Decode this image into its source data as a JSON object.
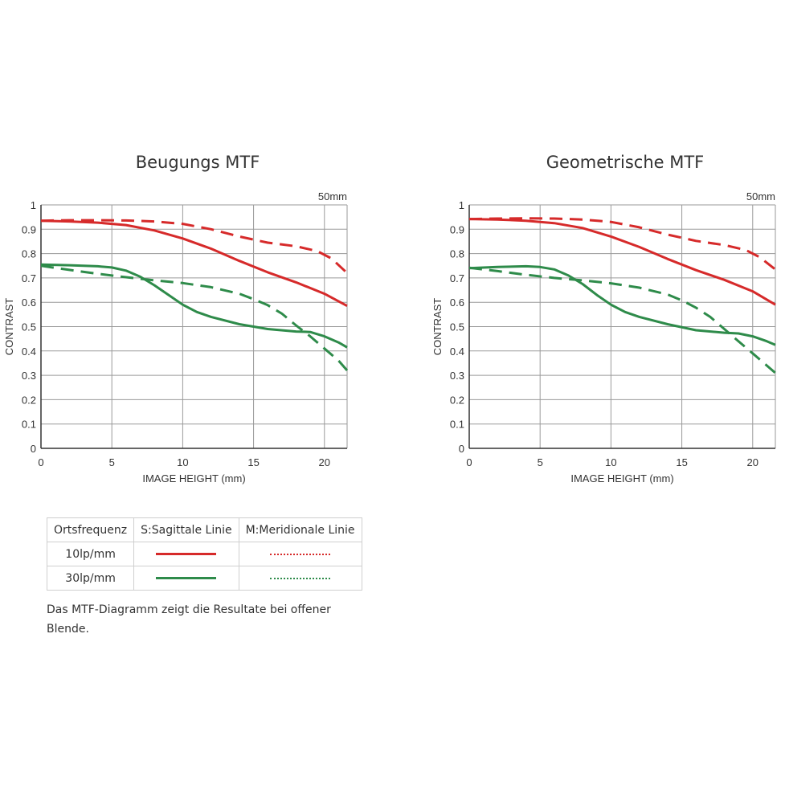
{
  "chart_data": [
    {
      "type": "line",
      "title": "Beugungs MTF",
      "focal_label": "50mm",
      "xlabel": "IMAGE HEIGHT (mm)",
      "ylabel": "CONTRAST",
      "xlim": [
        0,
        21.6
      ],
      "ylim": [
        0,
        1
      ],
      "xticks": [
        0,
        5,
        10,
        15,
        20
      ],
      "yticks": [
        0,
        0.1,
        0.2,
        0.3,
        0.4,
        0.5,
        0.6,
        0.7,
        0.8,
        0.9,
        1
      ],
      "ytick_labels": [
        "0",
        "0.1",
        "0.2",
        "0.3",
        "0.4",
        "0.5",
        "0.6",
        "0.7",
        "0.8",
        "0.9",
        "1"
      ],
      "series": [
        {
          "name": "10lp/mm S",
          "color": "#d62a2a",
          "style": "solid",
          "x": [
            0,
            2,
            4,
            6,
            8,
            10,
            12,
            14,
            16,
            18,
            20,
            21.6
          ],
          "y": [
            0.935,
            0.932,
            0.927,
            0.917,
            0.895,
            0.862,
            0.82,
            0.77,
            0.723,
            0.682,
            0.635,
            0.585
          ]
        },
        {
          "name": "10lp/mm M",
          "color": "#d62a2a",
          "style": "dashed",
          "x": [
            0,
            2,
            4,
            6,
            8,
            10,
            12,
            14,
            16,
            18,
            19.5,
            20.5,
            21.6
          ],
          "y": [
            0.935,
            0.937,
            0.937,
            0.936,
            0.932,
            0.922,
            0.9,
            0.87,
            0.845,
            0.83,
            0.81,
            0.78,
            0.72
          ]
        },
        {
          "name": "30lp/mm S",
          "color": "#2e8b4a",
          "style": "solid",
          "x": [
            0,
            2,
            4,
            5,
            6,
            7,
            8,
            9,
            10,
            11,
            12,
            14,
            16,
            18,
            19,
            20,
            21,
            21.6
          ],
          "y": [
            0.755,
            0.752,
            0.748,
            0.743,
            0.73,
            0.705,
            0.67,
            0.63,
            0.59,
            0.56,
            0.54,
            0.51,
            0.49,
            0.48,
            0.478,
            0.46,
            0.435,
            0.415
          ]
        },
        {
          "name": "30lp/mm M",
          "color": "#2e8b4a",
          "style": "dashed",
          "x": [
            0,
            2,
            4,
            6,
            8,
            10,
            12,
            14,
            15,
            16,
            17,
            18,
            19,
            20,
            21,
            21.6
          ],
          "y": [
            0.75,
            0.733,
            0.717,
            0.703,
            0.69,
            0.679,
            0.662,
            0.635,
            0.613,
            0.588,
            0.553,
            0.505,
            0.46,
            0.41,
            0.36,
            0.32
          ]
        }
      ]
    },
    {
      "type": "line",
      "title": "Geometrische MTF",
      "focal_label": "50mm",
      "xlabel": "IMAGE HEIGHT (mm)",
      "ylabel": "CONTRAST",
      "xlim": [
        0,
        21.6
      ],
      "ylim": [
        0,
        1
      ],
      "xticks": [
        0,
        5,
        10,
        15,
        20
      ],
      "yticks": [
        0,
        0.1,
        0.2,
        0.3,
        0.4,
        0.5,
        0.6,
        0.7,
        0.8,
        0.9,
        1
      ],
      "ytick_labels": [
        "0",
        "0.1",
        "0.2",
        "0.3",
        "0.4",
        "0.5",
        "0.6",
        "0.7",
        "0.8",
        "0.9",
        "1"
      ],
      "series": [
        {
          "name": "10lp/mm S",
          "color": "#d62a2a",
          "style": "solid",
          "x": [
            0,
            2,
            4,
            6,
            8,
            10,
            12,
            14,
            16,
            18,
            20,
            21.6
          ],
          "y": [
            0.942,
            0.94,
            0.935,
            0.925,
            0.905,
            0.87,
            0.827,
            0.778,
            0.732,
            0.692,
            0.645,
            0.59
          ]
        },
        {
          "name": "10lp/mm M",
          "color": "#d62a2a",
          "style": "dashed",
          "x": [
            0,
            2,
            4,
            6,
            8,
            10,
            12,
            14,
            16,
            18,
            19.5,
            20.5,
            21.6
          ],
          "y": [
            0.942,
            0.944,
            0.945,
            0.944,
            0.94,
            0.93,
            0.908,
            0.878,
            0.852,
            0.835,
            0.815,
            0.785,
            0.735
          ]
        },
        {
          "name": "30lp/mm S",
          "color": "#2e8b4a",
          "style": "solid",
          "x": [
            0,
            2,
            4,
            5,
            6,
            7,
            8,
            9,
            10,
            11,
            12,
            14,
            16,
            18,
            19,
            20,
            21,
            21.6
          ],
          "y": [
            0.74,
            0.745,
            0.748,
            0.745,
            0.735,
            0.71,
            0.675,
            0.63,
            0.59,
            0.56,
            0.54,
            0.51,
            0.485,
            0.475,
            0.472,
            0.46,
            0.44,
            0.425
          ]
        },
        {
          "name": "30lp/mm M",
          "color": "#2e8b4a",
          "style": "dashed",
          "x": [
            0,
            2,
            4,
            6,
            8,
            10,
            12,
            14,
            15,
            16,
            17,
            18,
            19,
            20,
            21,
            21.6
          ],
          "y": [
            0.742,
            0.728,
            0.713,
            0.7,
            0.69,
            0.678,
            0.66,
            0.632,
            0.608,
            0.578,
            0.54,
            0.49,
            0.44,
            0.39,
            0.34,
            0.31
          ]
        }
      ]
    }
  ],
  "legend": {
    "header": [
      "Ortsfrequenz",
      "S:Sagittale Linie",
      "M:Meridionale Linie"
    ],
    "rows": [
      {
        "label": "10lp/mm",
        "color": "#d62a2a"
      },
      {
        "label": "30lp/mm",
        "color": "#2e8b4a"
      }
    ]
  },
  "note": "Das MTF-Diagramm zeigt die Resultate bei offener Blende."
}
